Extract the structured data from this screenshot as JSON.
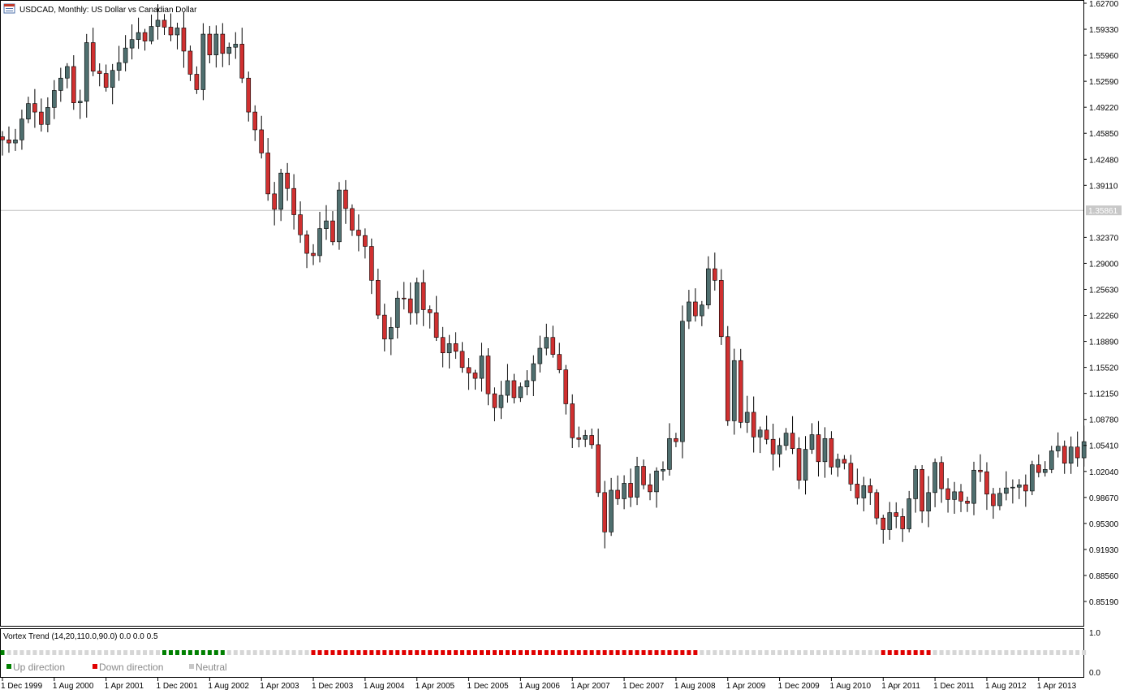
{
  "window": {
    "title": "USDCAD, Monthly:  US Dollar vs Canadian Dollar",
    "icon": "chart-window-icon"
  },
  "current_price": "1.35861",
  "indicator": {
    "label": "Vortex Trend (14,20,110.0,90.0) 0.0 0.0 0.5",
    "axis_labels": [
      "1.0",
      "0.0"
    ],
    "legend": [
      {
        "label": "Up direction",
        "color": "#008000"
      },
      {
        "label": "Down direction",
        "color": "#e00000"
      },
      {
        "label": "Neutral",
        "color": "#c8c8c8"
      }
    ],
    "segments": [
      {
        "state": "up",
        "count": 1
      },
      {
        "state": "neutral",
        "count": 24
      },
      {
        "state": "up",
        "count": 10
      },
      {
        "state": "neutral",
        "count": 13
      },
      {
        "state": "down",
        "count": 60
      },
      {
        "state": "neutral",
        "count": 28
      },
      {
        "state": "down",
        "count": 8
      },
      {
        "state": "neutral",
        "count": 24
      }
    ]
  },
  "colors": {
    "up_body": "#4f6f6f",
    "down_body": "#d03030",
    "wick": "#000000",
    "grid_line": "#c0c0c0"
  },
  "chart_data": {
    "type": "candlestick",
    "symbol": "USDCAD",
    "timeframe": "Monthly",
    "ylim": [
      0.835,
      1.627
    ],
    "y_ticks": [
      "1.62700",
      "1.59330",
      "1.55960",
      "1.52590",
      "1.49220",
      "1.45850",
      "1.42480",
      "1.39110",
      "1.35861",
      "1.32370",
      "1.29000",
      "1.25630",
      "1.22260",
      "1.18890",
      "1.15520",
      "1.12150",
      "1.08780",
      "1.05410",
      "1.02040",
      "0.98670",
      "0.95300",
      "0.91930",
      "0.88560",
      "0.85190"
    ],
    "x_ticks": [
      "1 Dec 1999",
      "1 Aug 2000",
      "1 Apr 2001",
      "1 Dec 2001",
      "1 Aug 2002",
      "1 Apr 2003",
      "1 Dec 2003",
      "1 Aug 2004",
      "1 Apr 2005",
      "1 Dec 2005",
      "1 Aug 2006",
      "1 Apr 2007",
      "1 Dec 2007",
      "1 Aug 2008",
      "1 Apr 2009",
      "1 Dec 2009",
      "1 Aug 2010",
      "1 Apr 2011",
      "1 Dec 2011",
      "1 Aug 2012",
      "1 Apr 2013"
    ],
    "first_month": "1999-12",
    "closes": [
      1.45,
      1.446,
      1.45,
      1.477,
      1.497,
      1.486,
      1.47,
      1.492,
      1.514,
      1.53,
      1.545,
      1.498,
      1.5,
      1.576,
      1.539,
      1.536,
      1.518,
      1.54,
      1.55,
      1.569,
      1.58,
      1.589,
      1.578,
      1.597,
      1.605,
      1.596,
      1.586,
      1.595,
      1.565,
      1.535,
      1.515,
      1.587,
      1.56,
      1.587,
      1.562,
      1.57,
      1.574,
      1.53,
      1.486,
      1.463,
      1.433,
      1.38,
      1.36,
      1.407,
      1.387,
      1.353,
      1.327,
      1.303,
      1.3,
      1.335,
      1.345,
      1.318,
      1.385,
      1.361,
      1.333,
      1.326,
      1.312,
      1.268,
      1.223,
      1.192,
      1.207,
      1.245,
      1.244,
      1.226,
      1.265,
      1.23,
      1.226,
      1.194,
      1.174,
      1.186,
      1.176,
      1.155,
      1.148,
      1.141,
      1.17,
      1.121,
      1.103,
      1.119,
      1.138,
      1.116,
      1.13,
      1.138,
      1.16,
      1.18,
      1.194,
      1.172,
      1.152,
      1.108,
      1.064,
      1.062,
      1.067,
      1.055,
      0.993,
      0.942,
      0.996,
      0.985,
      1.005,
      0.987,
      1.027,
      1.003,
      0.994,
      1.021,
      1.023,
      1.063,
      1.059,
      1.215,
      1.24,
      1.222,
      1.236,
      1.283,
      1.268,
      1.195,
      1.086,
      1.164,
      1.084,
      1.097,
      1.065,
      1.074,
      1.062,
      1.043,
      1.054,
      1.07,
      1.05,
      1.009,
      1.049,
      1.068,
      1.033,
      1.063,
      1.026,
      1.036,
      1.031,
      1.004,
      0.986,
      1.002,
      0.993,
      0.96,
      0.945,
      0.967,
      0.962,
      0.946,
      0.985,
      1.023,
      0.969,
      0.993,
      1.032,
      0.998,
      0.984,
      0.994,
      0.982,
      0.979,
      1.022,
      1.02,
      0.991,
      0.976,
      0.992,
      0.999,
      1.0,
      1.003,
      0.995,
      1.029,
      1.019,
      1.023,
      1.047,
      1.053,
      1.031,
      1.052,
      1.038,
      1.059
    ]
  }
}
